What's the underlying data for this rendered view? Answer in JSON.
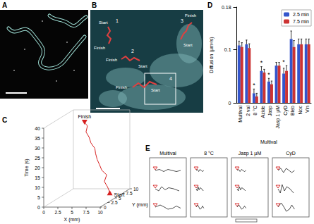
{
  "figure": {
    "panel_labels": [
      "A",
      "B",
      "C",
      "D",
      "E"
    ],
    "B": {
      "tracks": [
        {
          "number": "1",
          "start": "Start",
          "finish": "Finish"
        },
        {
          "number": "2",
          "start": "Start",
          "finish": "Finish"
        },
        {
          "number": "3",
          "start": "Start",
          "finish": "Finish"
        },
        {
          "number": "4",
          "start": "Start",
          "finish": "Finish"
        }
      ]
    },
    "C": {
      "type": "line3d",
      "x_label": "X (mm)",
      "y_label": "Y (mm)",
      "z_label": "Time (s)",
      "xlim": [
        0,
        10
      ],
      "xticks": [
        0,
        2.5,
        5,
        7.5,
        10
      ],
      "ylim": [
        0,
        10
      ],
      "yticks": [
        0,
        2.5,
        5,
        7.5,
        10
      ],
      "zlim": [
        0,
        40
      ],
      "zticks": [
        0,
        5,
        10,
        15,
        20,
        25,
        30,
        35,
        40
      ],
      "start": "Start",
      "finish": "Finish",
      "color": "#d62020",
      "track": {
        "x": [
          7.5,
          7.2,
          6.8,
          7.0,
          6.5,
          6.2,
          6.0,
          5.6,
          5.8,
          5.2,
          5.0,
          4.6,
          4.8,
          4.5
        ],
        "y": [
          8.0,
          7.8,
          7.5,
          7.9,
          7.2,
          7.0,
          6.6,
          6.8,
          6.2,
          6.0,
          5.8,
          5.5,
          5.6,
          5.2
        ],
        "t": [
          0,
          3,
          6,
          9,
          12,
          15,
          18,
          21,
          24,
          27,
          30,
          33,
          36,
          38
        ]
      }
    },
    "E": {
      "conditions": [
        "Multival",
        "8 °C",
        "Jasp 1 µM",
        "CyD"
      ]
    }
  },
  "chart_data": {
    "type": "bar",
    "y_label": "Diffusion (µm²/s)",
    "categories": [
      "Multival",
      "2 val",
      "8 °C",
      "Azide",
      "Jasp",
      "Jasp 1 µM",
      "CyD",
      "Bleb",
      "Noc",
      "Vin"
    ],
    "series": [
      {
        "name": "2.5 min",
        "color": "#3355cc",
        "values": [
          0.108,
          0.11,
          0.018,
          0.06,
          0.04,
          0.07,
          0.055,
          0.12,
          0.11,
          0.11
        ],
        "errors": [
          0.008,
          0.008,
          0.008,
          0.008,
          0.006,
          0.006,
          0.01,
          0.015,
          0.01,
          0.01
        ]
      },
      {
        "name": "7.5 min",
        "color": "#cc3333",
        "values": [
          0.105,
          0.103,
          0.012,
          0.057,
          0.035,
          0.07,
          0.06,
          0.105,
          0.11,
          0.11
        ],
        "errors": [
          0.008,
          0.008,
          0.006,
          0.006,
          0.006,
          0.006,
          0.01,
          0.012,
          0.01,
          0.01
        ]
      }
    ],
    "ylim": [
      0,
      0.18
    ],
    "yticks": [
      0,
      0.1
    ],
    "grid": false,
    "legend": "top-right",
    "annotations": [
      {
        "category": "8 °C",
        "text": "*"
      },
      {
        "category": "Azide",
        "text": "*"
      },
      {
        "category": "Jasp",
        "text": "*"
      },
      {
        "category": "CyD",
        "text": "*"
      }
    ],
    "group": {
      "label": "Multival",
      "categories": [
        "8 °C",
        "Azide",
        "Jasp",
        "Jasp 1 µM",
        "CyD"
      ]
    }
  }
}
